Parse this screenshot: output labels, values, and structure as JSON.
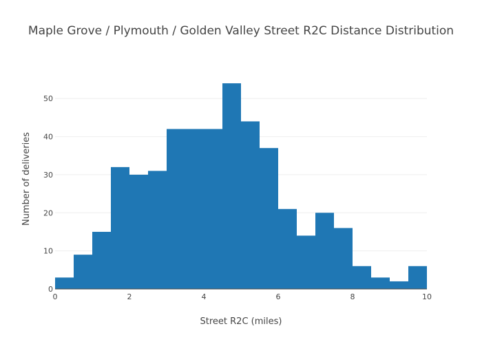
{
  "chart_data": {
    "type": "bar",
    "subtype": "histogram",
    "title": "Maple Grove / Plymouth / Golden Valley Street R2C Distance Distribution",
    "xlabel": "Street R2C (miles)",
    "ylabel": "Number of deliveries",
    "xlim": [
      0,
      10
    ],
    "ylim": [
      0,
      56
    ],
    "xticks": [
      0,
      2,
      4,
      6,
      8,
      10
    ],
    "yticks": [
      0,
      10,
      20,
      30,
      40,
      50
    ],
    "grid": true,
    "bar_color": "#1f77b4",
    "bins": [
      {
        "x0": 0.0,
        "x1": 0.5,
        "count": 3
      },
      {
        "x0": 0.5,
        "x1": 1.0,
        "count": 9
      },
      {
        "x0": 1.0,
        "x1": 1.5,
        "count": 15
      },
      {
        "x0": 1.5,
        "x1": 2.0,
        "count": 32
      },
      {
        "x0": 2.0,
        "x1": 2.5,
        "count": 30
      },
      {
        "x0": 2.5,
        "x1": 3.0,
        "count": 31
      },
      {
        "x0": 3.0,
        "x1": 3.5,
        "count": 42
      },
      {
        "x0": 3.5,
        "x1": 4.0,
        "count": 42
      },
      {
        "x0": 4.0,
        "x1": 4.5,
        "count": 42
      },
      {
        "x0": 4.5,
        "x1": 5.0,
        "count": 54
      },
      {
        "x0": 5.0,
        "x1": 5.5,
        "count": 44
      },
      {
        "x0": 5.5,
        "x1": 6.0,
        "count": 37
      },
      {
        "x0": 6.0,
        "x1": 6.5,
        "count": 21
      },
      {
        "x0": 6.5,
        "x1": 7.0,
        "count": 14
      },
      {
        "x0": 7.0,
        "x1": 7.5,
        "count": 20
      },
      {
        "x0": 7.5,
        "x1": 8.0,
        "count": 16
      },
      {
        "x0": 8.0,
        "x1": 8.5,
        "count": 6
      },
      {
        "x0": 8.5,
        "x1": 9.0,
        "count": 3
      },
      {
        "x0": 9.0,
        "x1": 9.5,
        "count": 2
      },
      {
        "x0": 9.5,
        "x1": 10.0,
        "count": 6
      }
    ]
  }
}
